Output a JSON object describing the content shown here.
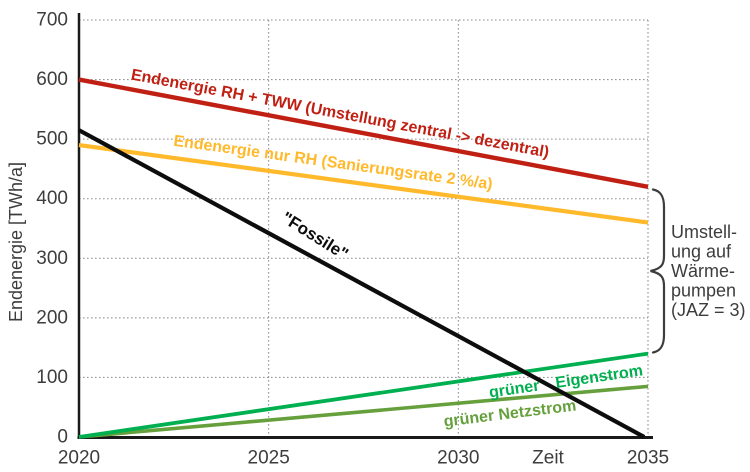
{
  "chart_data": {
    "type": "line",
    "title": "",
    "xlabel": "Zeit",
    "ylabel": "Endenergie [TWh/a]",
    "x_range": [
      2020,
      2035
    ],
    "y_range": [
      0,
      700
    ],
    "x_ticks": [
      2020,
      2025,
      2030,
      2035
    ],
    "y_ticks": [
      0,
      100,
      200,
      300,
      400,
      500,
      600,
      700
    ],
    "grid": "dotted",
    "legend_position": "labels-on-lines",
    "series": [
      {
        "label": "Endenergie RH + TWW (Umstellung zentral -> dezentral)",
        "color": "#c02014",
        "x": [
          2020,
          2035
        ],
        "y": [
          600,
          420
        ]
      },
      {
        "label": "Endenergie nur RH (Sanierungsrate 2 %/a)",
        "color": "#ffb92b",
        "x": [
          2020,
          2035
        ],
        "y": [
          490,
          360
        ]
      },
      {
        "label": "\"Fossile\"",
        "color": "#0d0d0d",
        "x": [
          2020,
          2034.9
        ],
        "y": [
          515,
          0
        ]
      },
      {
        "label": "grüner Eigenstrom",
        "color": "#00b050",
        "x": [
          2020,
          2035
        ],
        "y": [
          0,
          140
        ]
      },
      {
        "label": "grüner Netzstrom",
        "color": "#66a03c",
        "x": [
          2020,
          2035
        ],
        "y": [
          0,
          85
        ]
      }
    ],
    "annotation": {
      "text": "Umstellung auf Wärmepumpen (JAZ = 3)",
      "lines": [
        "Umstell-",
        "ung auf",
        "Wärme-",
        "pumpen",
        "(JAZ = 3)"
      ]
    }
  },
  "colors": {
    "axis": "#1a1a1a",
    "grid": "#8a8a8a",
    "text": "#3d3d3d"
  }
}
